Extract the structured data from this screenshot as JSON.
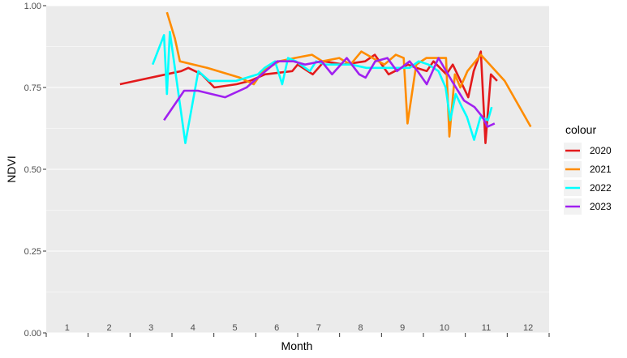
{
  "chart_data": {
    "type": "line",
    "xlabel": "Month",
    "ylabel": "NDVI",
    "ylim": [
      0,
      1
    ],
    "xlim": [
      0.5,
      12.5
    ],
    "yticks": [
      0,
      0.25,
      0.5,
      0.75,
      1
    ],
    "ytick_labels": [
      "0.00",
      "0.25",
      "0.50",
      "0.75",
      "1.00"
    ],
    "month_labels": [
      "1",
      "2",
      "3",
      "4",
      "5",
      "6",
      "7",
      "8",
      "9",
      "10",
      "11",
      "12"
    ],
    "month_positions": [
      1,
      2,
      3,
      4,
      5,
      6,
      7,
      8,
      9,
      10,
      11,
      12
    ],
    "grid": true,
    "background": "#ebebeb",
    "legend": {
      "title": "colour",
      "position": "right",
      "entries": [
        {
          "label": "2020",
          "color": "#e31a1c"
        },
        {
          "label": "2021",
          "color": "#ff8c00"
        },
        {
          "label": "2022",
          "color": "#00ffff"
        },
        {
          "label": "2023",
          "color": "#a020f0"
        }
      ]
    },
    "series": [
      {
        "name": "2020",
        "color": "#e31a1c",
        "x": [
          2.26,
          3.72,
          3.89,
          4.21,
          4.51,
          5.04,
          5.36,
          5.72,
          6.37,
          6.5,
          6.86,
          7.13,
          7.59,
          8.11,
          8.34,
          8.67,
          9.13,
          9.33,
          9.58,
          9.74,
          10.05,
          10.2,
          10.57,
          10.7,
          10.87,
          10.98,
          11.11,
          11.26
        ],
        "y": [
          0.76,
          0.8,
          0.81,
          0.79,
          0.75,
          0.76,
          0.77,
          0.79,
          0.8,
          0.82,
          0.79,
          0.83,
          0.82,
          0.83,
          0.85,
          0.79,
          0.82,
          0.81,
          0.8,
          0.83,
          0.79,
          0.82,
          0.72,
          0.8,
          0.86,
          0.58,
          0.79,
          0.77
        ]
      },
      {
        "name": "2021",
        "color": "#ff8c00",
        "x": [
          3.38,
          3.57,
          3.69,
          4.34,
          5.12,
          5.45,
          5.67,
          6.06,
          6.43,
          6.84,
          7.09,
          7.49,
          7.76,
          8.02,
          8.29,
          8.57,
          8.84,
          9.03,
          9.12,
          9.33,
          9.57,
          9.84,
          10.04,
          10.12,
          10.25,
          10.38,
          10.55,
          10.87,
          11.44,
          12.06
        ],
        "y": [
          0.98,
          0.9,
          0.83,
          0.81,
          0.78,
          0.76,
          0.8,
          0.83,
          0.84,
          0.85,
          0.83,
          0.84,
          0.82,
          0.86,
          0.84,
          0.82,
          0.85,
          0.84,
          0.64,
          0.82,
          0.84,
          0.84,
          0.84,
          0.6,
          0.79,
          0.75,
          0.8,
          0.85,
          0.77,
          0.63
        ]
      },
      {
        "name": "2022",
        "color": "#00ffff",
        "x": [
          3.04,
          3.31,
          3.38,
          3.45,
          3.82,
          4.13,
          4.39,
          4.63,
          5.03,
          5.55,
          5.71,
          5.96,
          6.13,
          6.27,
          6.46,
          6.79,
          6.94,
          7.16,
          7.47,
          7.78,
          8.14,
          8.48,
          8.81,
          9.17,
          9.39,
          9.62,
          9.86,
          10.03,
          10.14,
          10.27,
          10.42,
          10.54,
          10.71,
          10.86,
          11.04,
          11.13
        ],
        "y": [
          0.82,
          0.91,
          0.73,
          0.92,
          0.58,
          0.8,
          0.77,
          0.77,
          0.77,
          0.79,
          0.81,
          0.83,
          0.76,
          0.84,
          0.83,
          0.8,
          0.83,
          0.82,
          0.82,
          0.82,
          0.81,
          0.81,
          0.81,
          0.81,
          0.83,
          0.82,
          0.8,
          0.75,
          0.65,
          0.73,
          0.69,
          0.66,
          0.59,
          0.66,
          0.65,
          0.69
        ]
      },
      {
        "name": "2023",
        "color": "#a020f0",
        "x": [
          3.31,
          3.79,
          4.12,
          4.77,
          5.28,
          5.64,
          6.01,
          6.4,
          6.68,
          7.07,
          7.32,
          7.67,
          7.97,
          8.12,
          8.35,
          8.64,
          8.87,
          9.17,
          9.36,
          9.58,
          9.86,
          10.18,
          10.47,
          10.72,
          10.91,
          11.03,
          11.2
        ],
        "y": [
          0.65,
          0.74,
          0.74,
          0.72,
          0.75,
          0.79,
          0.83,
          0.83,
          0.82,
          0.83,
          0.79,
          0.84,
          0.79,
          0.78,
          0.83,
          0.84,
          0.8,
          0.83,
          0.8,
          0.76,
          0.84,
          0.77,
          0.71,
          0.69,
          0.66,
          0.63,
          0.64
        ]
      }
    ]
  }
}
